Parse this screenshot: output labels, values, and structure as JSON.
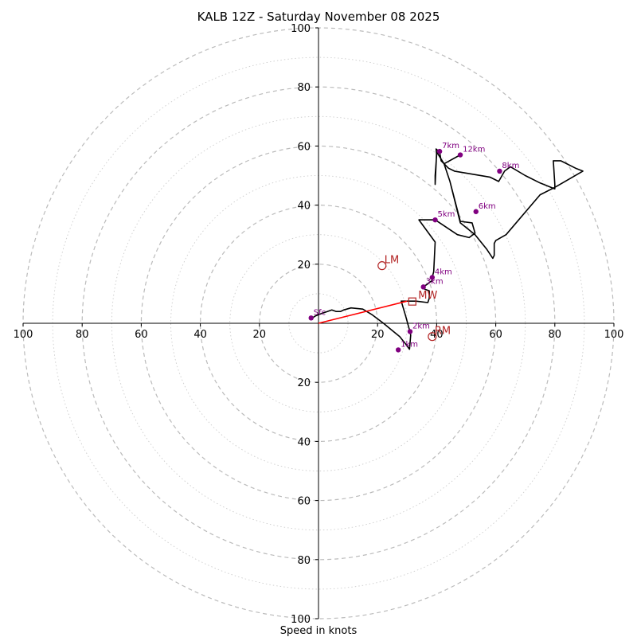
{
  "chart_data": {
    "type": "line",
    "title": "KALB 12Z - Saturday November 08 2025",
    "xlabel": "Speed in knots",
    "axis_range": [
      -100,
      100
    ],
    "ring_step_major": 20,
    "ring_step_minor": 10,
    "tick_labels": {
      "x": [
        "100",
        "80",
        "60",
        "40",
        "20",
        "20",
        "40",
        "60",
        "80",
        "100"
      ],
      "y": [
        "100",
        "80",
        "60",
        "40",
        "20",
        "20",
        "40",
        "60",
        "80",
        "100"
      ]
    },
    "tick_values": {
      "x": [
        -100,
        -80,
        -60,
        -40,
        -20,
        20,
        40,
        60,
        80,
        100
      ],
      "y": [
        100,
        80,
        60,
        40,
        20,
        -20,
        -40,
        -60,
        -80,
        -100
      ]
    },
    "hodograph": {
      "color": "#000000",
      "points": [
        [
          -2.5,
          1.5
        ],
        [
          -1,
          2.5
        ],
        [
          1,
          3.3
        ],
        [
          3,
          4
        ],
        [
          4.5,
          4.5
        ],
        [
          6,
          4
        ],
        [
          7.5,
          4
        ],
        [
          8.5,
          4.5
        ],
        [
          11,
          5.2
        ],
        [
          15,
          4.8
        ],
        [
          18,
          3
        ],
        [
          22,
          0
        ],
        [
          25,
          -2.5
        ],
        [
          27.5,
          -4.5
        ],
        [
          29.5,
          -7
        ],
        [
          30.8,
          -8.8
        ],
        [
          31.2,
          -4
        ],
        [
          31,
          -3
        ],
        [
          29.5,
          2.5
        ],
        [
          28,
          7.5
        ],
        [
          33,
          7.5
        ],
        [
          37,
          7
        ],
        [
          37.5,
          8.5
        ],
        [
          37.5,
          11
        ],
        [
          36,
          11.5
        ],
        [
          35.5,
          12.5
        ],
        [
          36.5,
          13
        ],
        [
          38.5,
          14.5
        ],
        [
          38.5,
          15.5
        ],
        [
          39,
          17.5
        ],
        [
          39.5,
          27.5
        ],
        [
          34,
          35
        ],
        [
          39.5,
          35
        ],
        [
          47,
          30
        ],
        [
          51,
          29
        ],
        [
          53,
          30.5
        ],
        [
          52,
          34
        ],
        [
          48,
          34.5
        ],
        [
          44.5,
          48
        ],
        [
          42.5,
          54
        ],
        [
          40,
          58
        ],
        [
          39.5,
          47
        ],
        [
          39.5,
          50
        ],
        [
          40,
          57
        ],
        [
          39.8,
          59
        ],
        [
          41,
          58
        ],
        [
          41.5,
          55
        ],
        [
          44,
          52.5
        ],
        [
          46,
          51.5
        ],
        [
          49,
          51
        ],
        [
          58,
          49.5
        ],
        [
          61,
          48
        ],
        [
          63,
          51.5
        ],
        [
          65,
          53
        ],
        [
          70,
          50
        ],
        [
          75,
          47.5
        ],
        [
          80,
          45.5
        ],
        [
          80,
          47
        ],
        [
          79.5,
          55
        ],
        [
          82,
          55
        ],
        [
          87,
          52.5
        ],
        [
          89.5,
          51.5
        ],
        [
          80,
          46
        ],
        [
          75,
          43.5
        ],
        [
          63.5,
          30
        ],
        [
          60,
          28
        ],
        [
          59.5,
          27
        ],
        [
          59.5,
          23
        ],
        [
          59,
          22
        ],
        [
          57,
          25
        ],
        [
          53,
          30
        ],
        [
          48,
          34
        ],
        [
          44.5,
          48
        ],
        [
          42.5,
          54
        ],
        [
          48,
          57
        ]
      ]
    },
    "height_markers": {
      "color": "#800080",
      "points": [
        {
          "label": "Sfc",
          "u": -2.5,
          "v": 1.8
        },
        {
          "label": "1km",
          "u": 27,
          "v": -9
        },
        {
          "label": "2km",
          "u": 31,
          "v": -2.8
        },
        {
          "label": "3km",
          "u": 35.5,
          "v": 12.3
        },
        {
          "label": "4km",
          "u": 38.5,
          "v": 15.5
        },
        {
          "label": "5km",
          "u": 39.5,
          "v": 35
        },
        {
          "label": "6km",
          "u": 53.3,
          "v": 37.8
        },
        {
          "label": "7km",
          "u": 41,
          "v": 58.2
        },
        {
          "label": "8km",
          "u": 61.3,
          "v": 51.5
        },
        {
          "label": "12km",
          "u": 48,
          "v": 57
        }
      ]
    },
    "storm_markers": {
      "color": "#b22222",
      "points": [
        {
          "label": "LM",
          "u": 21.5,
          "v": 19.5,
          "shape": "circle"
        },
        {
          "label": "MW",
          "u": 30,
          "v": 7.5,
          "shape": "square"
        },
        {
          "label": "RM",
          "u": 38.5,
          "v": -4.5,
          "shape": "circle"
        }
      ]
    },
    "mean_wind_vector": {
      "color": "#ff0000",
      "u": 30,
      "v": 7.5
    },
    "grid": true
  }
}
